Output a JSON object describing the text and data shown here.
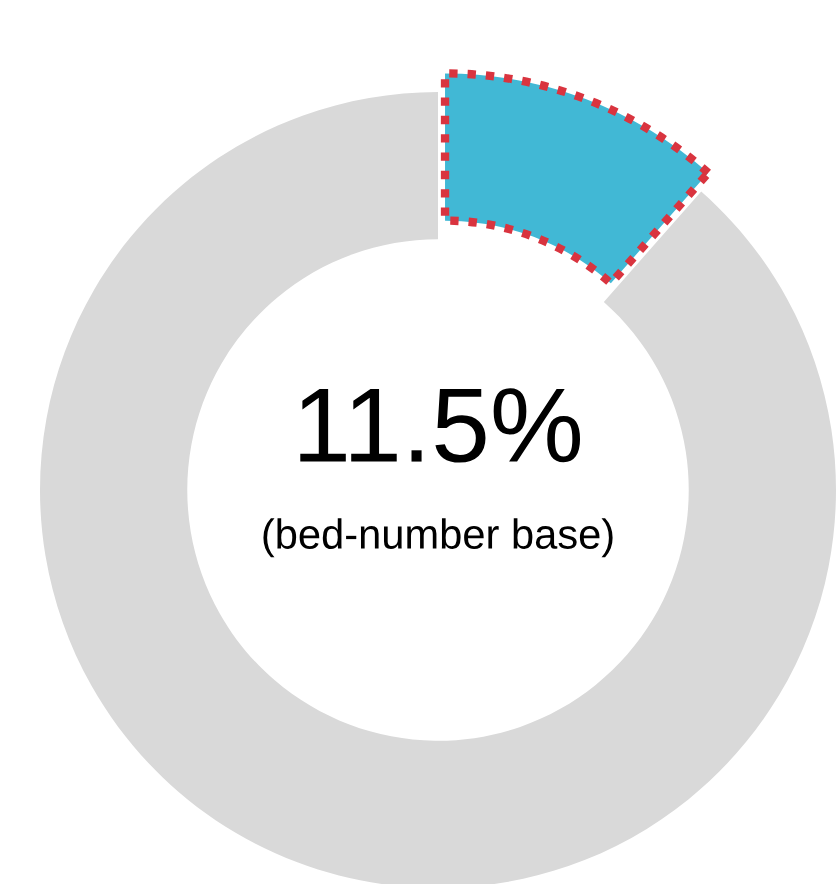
{
  "chart_data": {
    "type": "donut",
    "categories": [
      null,
      null
    ],
    "values": [
      11.5,
      88.5
    ],
    "colors": [
      "#41b8d5",
      "#d9d9d9"
    ],
    "annotations": [
      "11.5%",
      "(bed-number base)"
    ]
  }
}
